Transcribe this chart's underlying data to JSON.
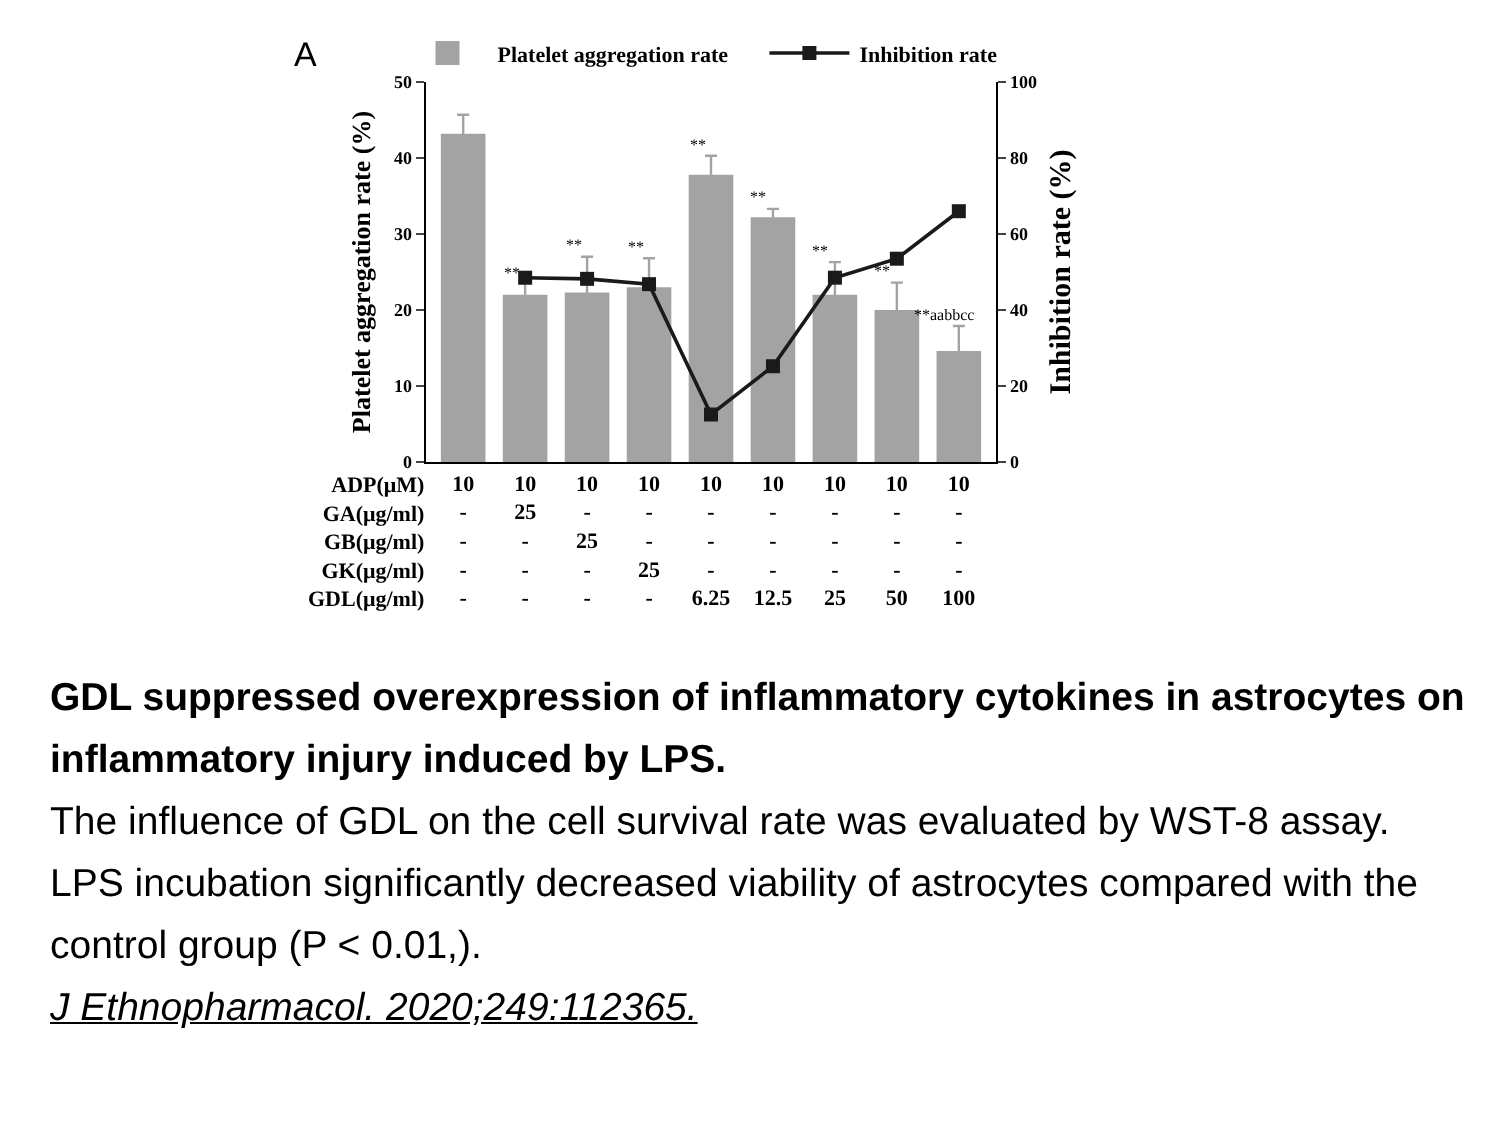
{
  "chart_data": {
    "type": "bar",
    "categories": [
      "10\n-\n-\n-\n-",
      "10\n25\n-\n-\n-",
      "10\n-\n25\n-\n-",
      "10\n-\n-\n25\n-",
      "10\n-\n-\n-\n6.25",
      "10\n-\n-\n-\n12.5",
      "10\n-\n-\n-\n25",
      "10\n-\n-\n-\n50",
      "10\n-\n-\n-\n100"
    ],
    "series": [
      {
        "name": "Platelet aggregation rate",
        "color": "#a3a3a3",
        "values": [
          43.2,
          22,
          22.3,
          23,
          37.8,
          32.2,
          22,
          20,
          14.6
        ],
        "errors": [
          2.5,
          1.5,
          4.7,
          3.8,
          2.5,
          1.1,
          4.3,
          3.6,
          3.3
        ]
      },
      {
        "name": "Inhibition rate",
        "type": "line",
        "axis": "y2",
        "color": "#1a1a1a",
        "marker": "square",
        "values": [
          null,
          48.5,
          48.2,
          46.8,
          12.5,
          25.2,
          48.5,
          53.5,
          66
        ]
      }
    ],
    "ylabel": "Platelet aggregation rate (%)",
    "y2label": "Inhibition rate (%)",
    "ylim": [
      0,
      50
    ],
    "yticks": [
      0,
      10,
      20,
      30,
      40,
      50
    ],
    "y2lim": [
      0,
      100
    ],
    "y2ticks": [
      0,
      20,
      40,
      60,
      80,
      100
    ],
    "legend": "top",
    "grid": false,
    "annotations": [
      "A",
      "ADP(μM)\nGA(μg/ml)\nGB(μg/ml)\nGK(μg/ml)\nGDL(μg/ml)",
      "GDL suppressed overexpression of inflammatory cytokines in astrocytes on inflammatory injury induced by LPS.",
      "The influence of GDL on the cell survival rate was evaluated by WST-8 assay. LPS incubation significantly decreased viability of astrocytes compared with the control group (P < 0.01,).",
      "J Ethnopharmacol. 2020;249:112365.",
      {
        "text": "**",
        "x": "10\n25\n-\n-\n-",
        "y": 23.5
      },
      {
        "text": "**",
        "x": "10\n-\n25\n-\n-",
        "y": 27
      },
      {
        "text": "**",
        "x": "10\n-\n-\n25\n-",
        "y": 26.8
      },
      {
        "text": "**",
        "x": "10\n-\n-\n-\n6.25",
        "y": 40.3
      },
      {
        "text": "**",
        "x": "10\n-\n-\n-\n12.5",
        "y": 33.3
      },
      {
        "text": "**",
        "x": "10\n-\n-\n-\n25",
        "y": 26.3
      },
      {
        "text": "**",
        "x": "10\n-\n-\n-\n50",
        "y": 23.6
      },
      {
        "text": "**aabbcc",
        "x": "10\n-\n-\n-\n100",
        "y": 17.9
      }
    ]
  }
}
